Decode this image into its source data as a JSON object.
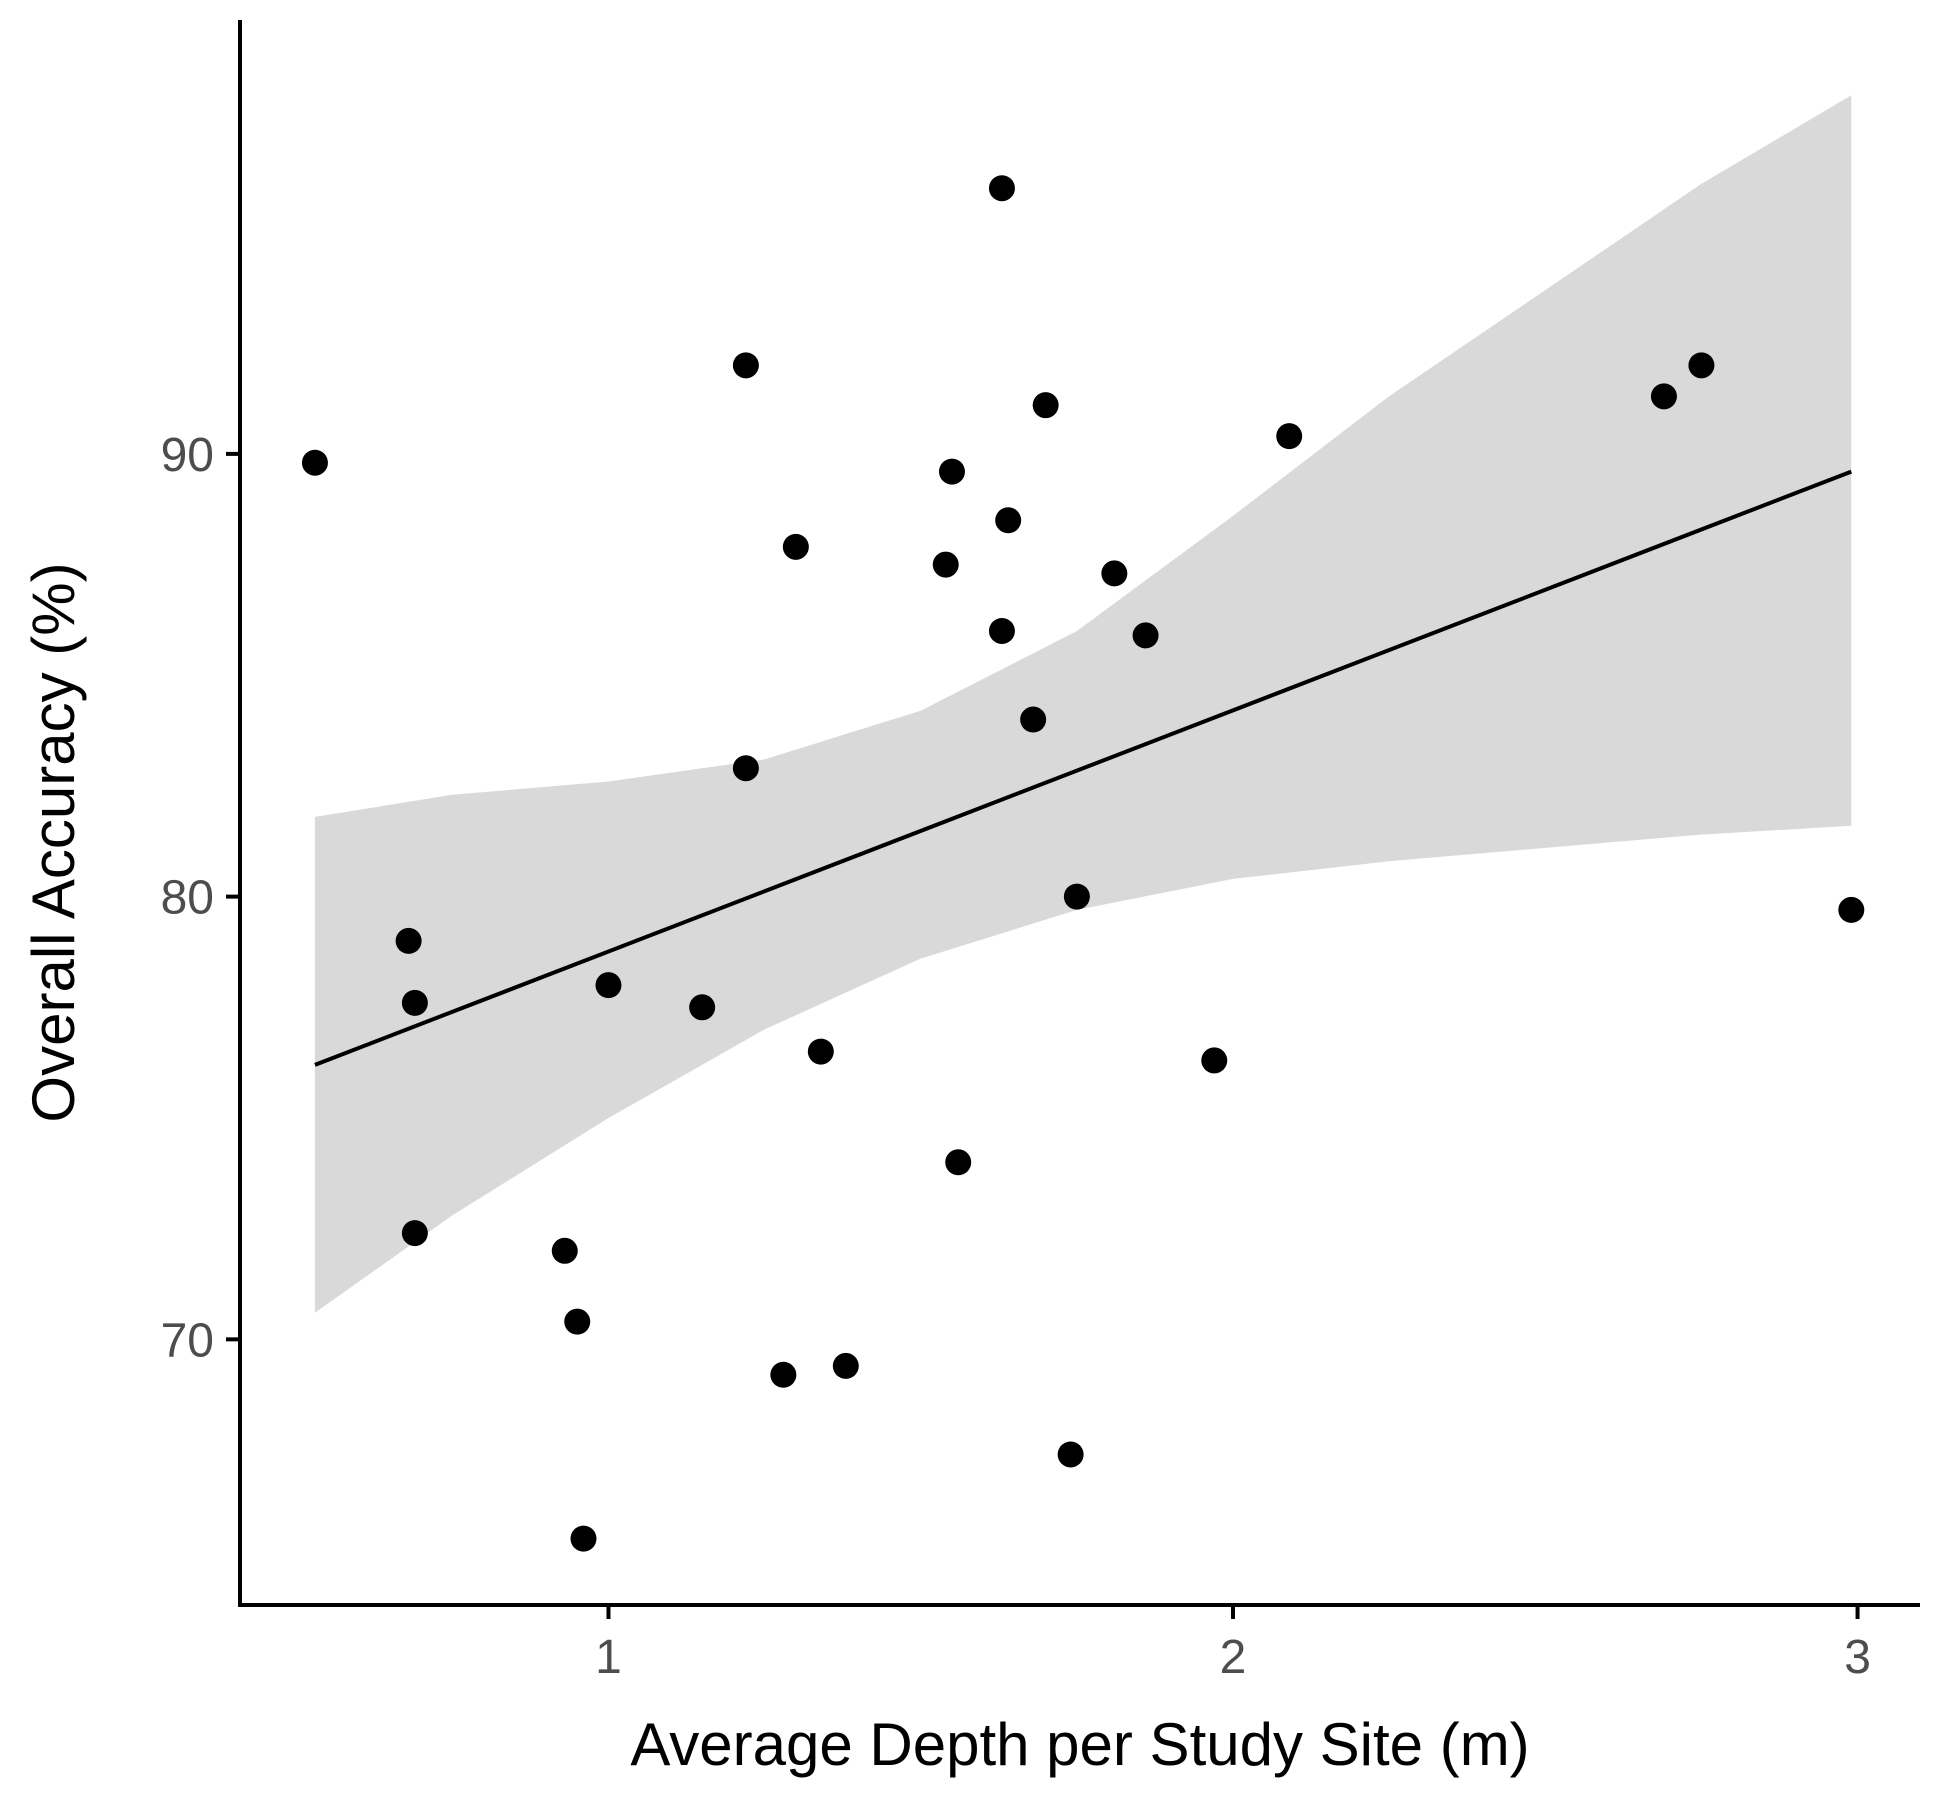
{
  "chart_data": {
    "type": "scatter",
    "title": "",
    "xlabel": "Average Depth per Study Site (m)",
    "ylabel": "Overall Accuracy (%)",
    "xlim": [
      0.41,
      3.1
    ],
    "ylim": [
      64.0,
      99.8
    ],
    "xticks": [
      1,
      2,
      3
    ],
    "xtick_labels": [
      "1",
      "2",
      "3"
    ],
    "yticks": [
      70,
      80,
      90
    ],
    "ytick_labels": [
      "70",
      "80",
      "90"
    ],
    "grid": false,
    "legend": "none",
    "colors": {
      "point": "#000000",
      "line": "#000000",
      "band": "#d9d9d9",
      "axis": "#000000",
      "tick_text": "#4d4d4d"
    },
    "points": [
      {
        "x": 0.53,
        "y": 89.8
      },
      {
        "x": 0.68,
        "y": 79.0
      },
      {
        "x": 0.69,
        "y": 77.6
      },
      {
        "x": 0.69,
        "y": 72.4
      },
      {
        "x": 0.93,
        "y": 72.0
      },
      {
        "x": 0.95,
        "y": 70.4
      },
      {
        "x": 0.96,
        "y": 65.5
      },
      {
        "x": 1.0,
        "y": 78.0
      },
      {
        "x": 1.15,
        "y": 77.5
      },
      {
        "x": 1.22,
        "y": 92.0
      },
      {
        "x": 1.22,
        "y": 82.9
      },
      {
        "x": 1.28,
        "y": 69.2
      },
      {
        "x": 1.3,
        "y": 87.9
      },
      {
        "x": 1.34,
        "y": 76.5
      },
      {
        "x": 1.38,
        "y": 69.4
      },
      {
        "x": 1.54,
        "y": 87.5
      },
      {
        "x": 1.55,
        "y": 89.6
      },
      {
        "x": 1.56,
        "y": 74.0
      },
      {
        "x": 1.63,
        "y": 96.0
      },
      {
        "x": 1.63,
        "y": 86.0
      },
      {
        "x": 1.64,
        "y": 88.5
      },
      {
        "x": 1.68,
        "y": 84.0
      },
      {
        "x": 1.7,
        "y": 91.1
      },
      {
        "x": 1.74,
        "y": 67.4
      },
      {
        "x": 1.75,
        "y": 80.0
      },
      {
        "x": 1.81,
        "y": 87.3
      },
      {
        "x": 1.86,
        "y": 85.9
      },
      {
        "x": 1.97,
        "y": 76.3
      },
      {
        "x": 2.09,
        "y": 90.4
      },
      {
        "x": 2.69,
        "y": 91.3
      },
      {
        "x": 2.75,
        "y": 92.0
      },
      {
        "x": 2.99,
        "y": 79.7
      }
    ],
    "regression": {
      "x": [
        0.53,
        2.99
      ],
      "y": [
        76.2,
        89.6
      ]
    },
    "confidence_band": {
      "x": [
        0.53,
        0.75,
        1.0,
        1.25,
        1.5,
        1.75,
        2.0,
        2.25,
        2.5,
        2.75,
        2.99
      ],
      "lower": [
        70.6,
        72.8,
        75.0,
        77.0,
        78.6,
        79.7,
        80.4,
        80.8,
        81.1,
        81.4,
        81.6
      ],
      "upper": [
        81.8,
        82.3,
        82.6,
        83.1,
        84.2,
        86.0,
        88.6,
        91.3,
        93.7,
        96.1,
        98.1
      ]
    }
  }
}
